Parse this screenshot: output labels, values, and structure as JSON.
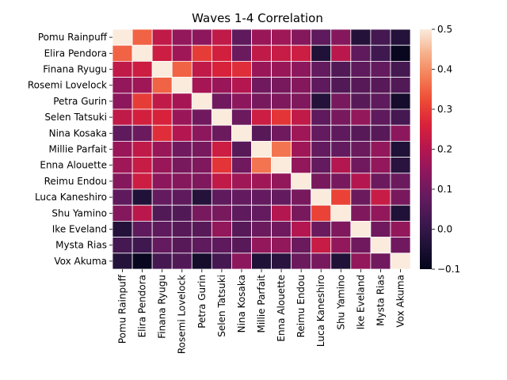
{
  "chart_data": {
    "type": "heatmap",
    "title": "Waves 1-4 Correlation",
    "labels": [
      "Pomu Rainpuff",
      "Elira Pendora",
      "Finana Ryugu",
      "Rosemi Lovelock",
      "Petra Gurin",
      "Selen Tatsuki",
      "Nina Kosaka",
      "Millie Parfait",
      "Enna Alouette",
      "Reimu Endou",
      "Luca Kaneshiro",
      "Shu Yamino",
      "Ike Eveland",
      "Mysta Rias",
      "Vox Akuma"
    ],
    "vmin": -0.1,
    "vmax": 0.5,
    "colorbar_ticks": [
      -0.1,
      0.0,
      0.1,
      0.2,
      0.3,
      0.4,
      0.5
    ],
    "colormap": "rocket",
    "cell_border_color": "#ffffff",
    "matrix": [
      [
        0.5,
        0.35,
        0.22,
        0.15,
        0.14,
        0.22,
        0.07,
        0.16,
        0.17,
        0.13,
        0.07,
        0.13,
        -0.03,
        0.03,
        -0.03
      ],
      [
        0.35,
        0.5,
        0.24,
        0.17,
        0.3,
        0.25,
        0.09,
        0.22,
        0.23,
        0.24,
        -0.04,
        0.21,
        0.07,
        0.02,
        -0.09
      ],
      [
        0.22,
        0.24,
        0.5,
        0.35,
        0.22,
        0.26,
        0.28,
        0.16,
        0.16,
        0.14,
        0.08,
        0.05,
        0.07,
        0.08,
        0.03
      ],
      [
        0.15,
        0.17,
        0.35,
        0.5,
        0.18,
        0.16,
        0.2,
        0.1,
        0.11,
        0.13,
        0.07,
        0.05,
        0.06,
        0.06,
        0.05
      ],
      [
        0.14,
        0.3,
        0.22,
        0.18,
        0.5,
        0.1,
        0.14,
        0.11,
        0.12,
        0.12,
        -0.03,
        0.11,
        0.06,
        0.07,
        -0.06
      ],
      [
        0.22,
        0.25,
        0.26,
        0.16,
        0.1,
        0.5,
        0.09,
        0.24,
        0.29,
        0.22,
        0.07,
        0.11,
        0.15,
        0.07,
        0.03
      ],
      [
        0.07,
        0.09,
        0.28,
        0.2,
        0.14,
        0.09,
        0.5,
        0.06,
        0.1,
        0.17,
        0.08,
        0.07,
        0.06,
        0.06,
        0.14
      ],
      [
        0.16,
        0.22,
        0.16,
        0.1,
        0.11,
        0.24,
        0.06,
        0.5,
        0.37,
        0.17,
        0.08,
        0.08,
        0.09,
        0.15,
        -0.04
      ],
      [
        0.17,
        0.23,
        0.16,
        0.11,
        0.12,
        0.29,
        0.1,
        0.37,
        0.5,
        0.15,
        0.08,
        0.2,
        0.1,
        0.15,
        -0.02
      ],
      [
        0.13,
        0.24,
        0.14,
        0.13,
        0.12,
        0.22,
        0.17,
        0.17,
        0.15,
        0.5,
        0.11,
        0.11,
        0.2,
        0.09,
        0.09
      ],
      [
        0.07,
        -0.04,
        0.08,
        0.07,
        -0.03,
        0.07,
        0.08,
        0.08,
        0.08,
        0.11,
        0.5,
        0.31,
        0.09,
        0.23,
        0.11
      ],
      [
        0.13,
        0.21,
        0.05,
        0.05,
        0.11,
        0.11,
        0.07,
        0.08,
        0.2,
        0.11,
        0.31,
        0.5,
        0.12,
        0.15,
        -0.04
      ],
      [
        -0.03,
        0.07,
        0.07,
        0.06,
        0.06,
        0.15,
        0.06,
        0.09,
        0.1,
        0.2,
        0.09,
        0.12,
        0.5,
        0.1,
        0.15
      ],
      [
        0.03,
        0.02,
        0.08,
        0.06,
        0.07,
        0.07,
        0.06,
        0.15,
        0.15,
        0.09,
        0.23,
        0.15,
        0.1,
        0.5,
        0.1
      ],
      [
        -0.03,
        -0.09,
        0.03,
        0.05,
        -0.06,
        0.03,
        0.14,
        -0.04,
        -0.02,
        0.09,
        0.11,
        -0.04,
        0.15,
        0.1,
        0.5
      ]
    ]
  }
}
